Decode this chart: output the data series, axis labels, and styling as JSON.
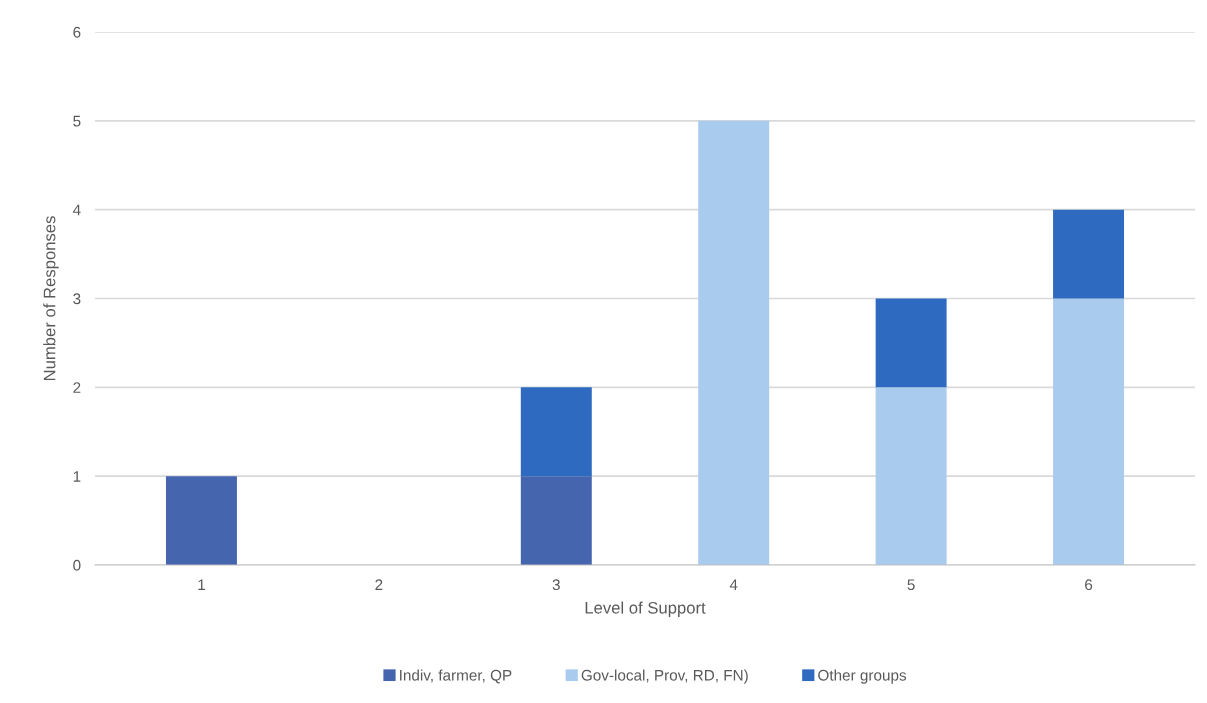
{
  "chart_data": {
    "type": "bar",
    "stacked": true,
    "xlabel": "Level of Support",
    "ylabel": "Number of Responses",
    "categories": [
      "1",
      "2",
      "3",
      "4",
      "5",
      "6"
    ],
    "series": [
      {
        "name": "Indiv, farmer, QP",
        "color": "#4565ae",
        "values": [
          1,
          0,
          1,
          0,
          0,
          0
        ]
      },
      {
        "name": "Gov-local, Prov, RD, FN)",
        "color": "#a9cbee",
        "values": [
          0,
          0,
          0,
          5,
          2,
          3
        ]
      },
      {
        "name": "Other groups",
        "color": "#2e6bc0",
        "values": [
          0,
          0,
          1,
          0,
          1,
          1
        ]
      }
    ],
    "ylim": [
      0,
      6
    ],
    "yticks": [
      0,
      1,
      2,
      3,
      4,
      5,
      6
    ],
    "grid": "y",
    "legend": "bottom"
  }
}
